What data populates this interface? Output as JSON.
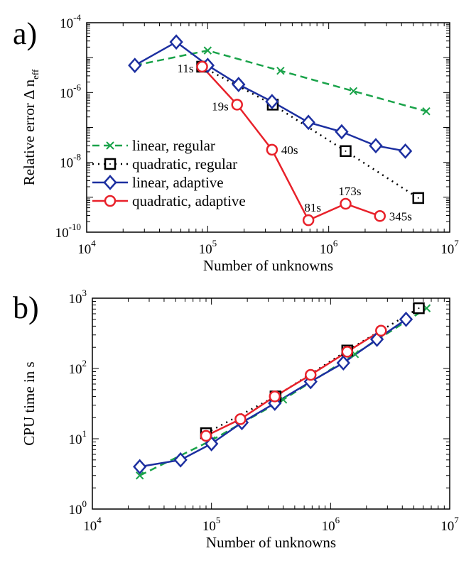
{
  "chart_data": [
    {
      "panel_label": "a)",
      "type": "line",
      "xscale": "log",
      "yscale": "log",
      "xlabel": "Number of unknowns",
      "ylabel": "Relative error Δ n",
      "ylabel_sub": "eff",
      "xlim": [
        10000,
        10000000
      ],
      "ylim": [
        1e-10,
        0.0001
      ],
      "x_ticks": [
        {
          "v": 10000,
          "base": "10",
          "exp": "4"
        },
        {
          "v": 100000,
          "base": "10",
          "exp": "5"
        },
        {
          "v": 1000000,
          "base": "10",
          "exp": "6"
        },
        {
          "v": 10000000,
          "base": "10",
          "exp": "7"
        }
      ],
      "y_ticks": [
        {
          "v": 1e-10,
          "base": "10",
          "exp": "-10"
        },
        {
          "v": 1e-08,
          "base": "10",
          "exp": "-8"
        },
        {
          "v": 1e-06,
          "base": "10",
          "exp": "-6"
        },
        {
          "v": 0.0001,
          "base": "10",
          "exp": "-4"
        }
      ],
      "legend_position": "lower-left",
      "series": [
        {
          "name": "linear, regular",
          "color": "#1aa34a",
          "dash": "10,6",
          "marker": "x",
          "x": [
            25000,
            100000,
            400000,
            1600000,
            6400000
          ],
          "y": [
            6e-06,
            1.6e-05,
            4.2e-06,
            1.1e-06,
            2.9e-07
          ]
        },
        {
          "name": "quadratic, regular",
          "color": "#000000",
          "dash": "2,6",
          "marker": "square",
          "x": [
            90000,
            345000,
            1380000,
            5500000
          ],
          "y": [
            5.5e-06,
            4.5e-07,
            2.1e-08,
            9.5e-10
          ]
        },
        {
          "name": "linear, adaptive",
          "color": "#1c2fa0",
          "dash": "",
          "marker": "diamond",
          "x": [
            25000,
            55000,
            100000,
            180000,
            340000,
            680000,
            1280000,
            2450000,
            4300000
          ],
          "y": [
            6e-06,
            2.8e-05,
            6e-06,
            1.7e-06,
            5.5e-07,
            1.4e-07,
            7.5e-08,
            3e-08,
            2.1e-08
          ]
        },
        {
          "name": "quadratic, adaptive",
          "color": "#e8212a",
          "dash": "",
          "marker": "circle",
          "x": [
            90000,
            175000,
            340000,
            680000,
            1380000,
            2650000
          ],
          "y": [
            5.5e-06,
            4.5e-07,
            2.3e-08,
            2.2e-10,
            6.5e-10,
            2.9e-10
          ]
        }
      ],
      "annotations": [
        {
          "text": "11s",
          "x": 90000,
          "y": 5.5e-06,
          "anchor": "left"
        },
        {
          "text": "19s",
          "x": 175000,
          "y": 4.5e-07,
          "anchor": "left"
        },
        {
          "text": "40s",
          "x": 340000,
          "y": 2.3e-08,
          "anchor": "right"
        },
        {
          "text": "81s",
          "x": 680000,
          "y": 2.2e-10,
          "anchor": "above"
        },
        {
          "text": "173s",
          "x": 1380000,
          "y": 6.5e-10,
          "anchor": "above"
        },
        {
          "text": "345s",
          "x": 2650000,
          "y": 2.9e-10,
          "anchor": "right"
        }
      ]
    },
    {
      "panel_label": "b)",
      "type": "line",
      "xscale": "log",
      "yscale": "log",
      "xlabel": "Number of unknowns",
      "ylabel": "CPU time in s",
      "xlim": [
        10000,
        10000000
      ],
      "ylim": [
        1,
        1000
      ],
      "x_ticks": [
        {
          "v": 10000,
          "base": "10",
          "exp": "4"
        },
        {
          "v": 100000,
          "base": "10",
          "exp": "5"
        },
        {
          "v": 1000000,
          "base": "10",
          "exp": "6"
        },
        {
          "v": 10000000,
          "base": "10",
          "exp": "7"
        }
      ],
      "y_ticks": [
        {
          "v": 1,
          "base": "10",
          "exp": "0"
        },
        {
          "v": 10,
          "base": "10",
          "exp": "1"
        },
        {
          "v": 100,
          "base": "10",
          "exp": "2"
        },
        {
          "v": 1000,
          "base": "10",
          "exp": "3"
        }
      ],
      "series": [
        {
          "name": "linear, regular",
          "color": "#1aa34a",
          "dash": "10,6",
          "marker": "x",
          "x": [
            25000,
            100000,
            400000,
            1600000,
            6400000
          ],
          "y": [
            3,
            9.5,
            36,
            160,
            720
          ]
        },
        {
          "name": "quadratic, regular",
          "color": "#000000",
          "dash": "2,6",
          "marker": "square",
          "x": [
            90000,
            345000,
            1380000,
            5500000
          ],
          "y": [
            12,
            40,
            180,
            720
          ]
        },
        {
          "name": "linear, adaptive",
          "color": "#1c2fa0",
          "dash": "",
          "marker": "diamond",
          "x": [
            25000,
            55000,
            100000,
            180000,
            340000,
            680000,
            1280000,
            2450000,
            4300000
          ],
          "y": [
            4,
            5,
            8.5,
            17,
            32,
            65,
            120,
            260,
            500
          ]
        },
        {
          "name": "quadratic, adaptive",
          "color": "#e8212a",
          "dash": "",
          "marker": "circle",
          "x": [
            90000,
            175000,
            340000,
            680000,
            1380000,
            2650000
          ],
          "y": [
            11,
            19,
            40,
            81,
            173,
            345
          ]
        }
      ]
    }
  ]
}
